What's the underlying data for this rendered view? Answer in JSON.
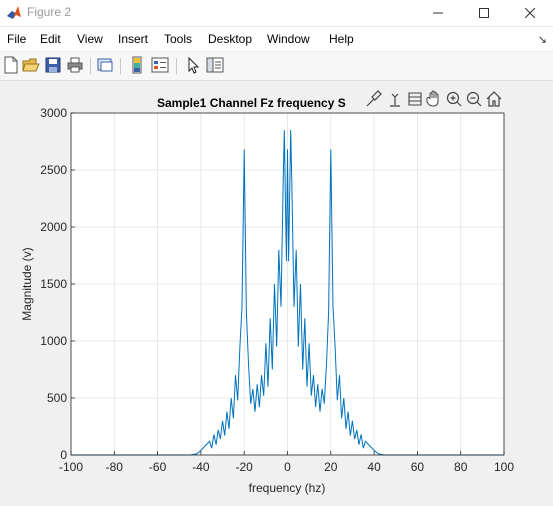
{
  "window": {
    "title": "Figure 2"
  },
  "menu": {
    "items": [
      "File",
      "Edit",
      "View",
      "Insert",
      "Tools",
      "Desktop",
      "Window",
      "Help"
    ],
    "overflow_icon": "chevron-right-icon"
  },
  "toolbar": {
    "icons": [
      "new-figure-icon",
      "open-file-icon",
      "save-icon",
      "print-icon",
      "link-plot-icon",
      "colorbar-icon",
      "legend-icon",
      "pointer-icon",
      "plot-browser-icon"
    ]
  },
  "axes_toolbar": {
    "icons": [
      "brush-icon",
      "data-tip-icon",
      "rotate-icon",
      "pan-icon",
      "zoom-in-icon",
      "zoom-out-icon",
      "home-icon"
    ]
  },
  "colors": {
    "line": "#0072bd",
    "axes_bg": "#ffffff",
    "figure_bg": "#f0f0f0",
    "grid": "#e3e3e3"
  },
  "chart_data": {
    "type": "line",
    "title": "Sample1 Channel Fz frequency S",
    "xlabel": "frequency (hz)",
    "ylabel": "Magnitude (v)",
    "xlim": [
      -100,
      100
    ],
    "ylim": [
      0,
      3000
    ],
    "xticks": [
      -100,
      -80,
      -60,
      -40,
      -20,
      0,
      20,
      40,
      60,
      80,
      100
    ],
    "xtick_labels": [
      "-100",
      "-80",
      "-60",
      "-40",
      "-20",
      "0",
      "20",
      "40",
      "60",
      "80",
      "100"
    ],
    "yticks": [
      0,
      500,
      1000,
      1500,
      2000,
      2500,
      3000
    ],
    "ytick_labels": [
      "0",
      "500",
      "1000",
      "1500",
      "2000",
      "2500",
      "3000"
    ],
    "grid": true,
    "series": [
      {
        "x": [
          -100,
          -45,
          -42,
          -40,
          -38,
          -36,
          -35,
          -34,
          -33,
          -32,
          -31,
          -30,
          -29,
          -28,
          -27,
          -26,
          -25,
          -24,
          -23,
          -22,
          -21,
          -20,
          -19,
          -18,
          -17,
          -16,
          -15,
          -14,
          -13,
          -12,
          -11,
          -10,
          -9,
          -8,
          -7,
          -6,
          -5,
          -4,
          -3,
          -2,
          -1.5,
          -1,
          -0.5,
          0,
          0.5,
          1,
          1.5,
          2,
          3,
          4,
          5,
          6,
          7,
          8,
          9,
          10,
          11,
          12,
          13,
          14,
          15,
          16,
          17,
          18,
          19,
          20,
          21,
          22,
          23,
          24,
          25,
          26,
          27,
          28,
          29,
          30,
          31,
          32,
          33,
          34,
          35,
          36,
          38,
          40,
          42,
          45,
          100
        ],
        "y": [
          0,
          0,
          10,
          40,
          80,
          120,
          60,
          180,
          90,
          220,
          140,
          300,
          170,
          380,
          230,
          500,
          320,
          700,
          480,
          950,
          1300,
          2680,
          1250,
          800,
          450,
          580,
          380,
          620,
          420,
          700,
          520,
          980,
          600,
          1200,
          750,
          1500,
          950,
          1800,
          1300,
          2400,
          2850,
          2300,
          1700,
          2680,
          1700,
          2300,
          2850,
          2400,
          1300,
          1800,
          950,
          1500,
          750,
          1200,
          600,
          980,
          520,
          700,
          420,
          620,
          380,
          580,
          450,
          800,
          1250,
          2680,
          1300,
          950,
          480,
          700,
          320,
          500,
          230,
          380,
          170,
          300,
          140,
          220,
          90,
          180,
          60,
          120,
          80,
          40,
          10,
          0,
          0
        ]
      }
    ]
  }
}
